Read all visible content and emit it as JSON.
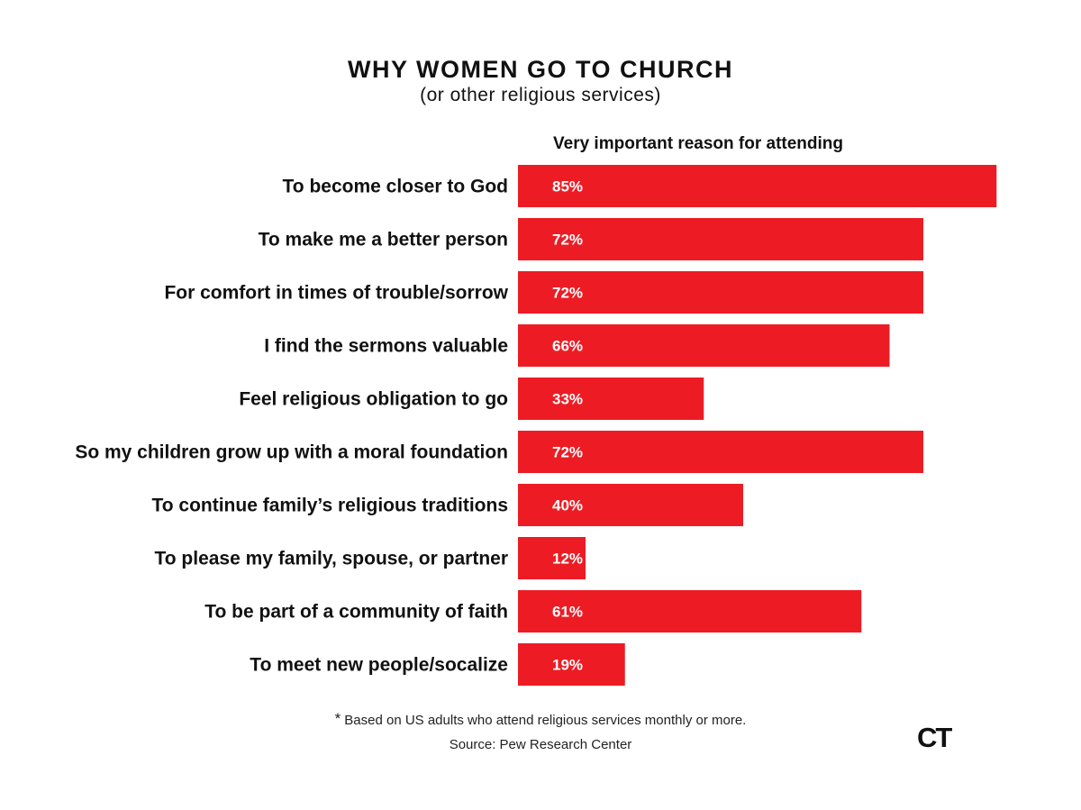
{
  "title": "WHY WOMEN GO TO CHURCH",
  "subtitle": "(or other religious services)",
  "column_header": "Very important reason for attending",
  "footnote": {
    "marker": "*",
    "text": "Based on US adults who attend religious services monthly or more."
  },
  "source": "Source: Pew Research Center",
  "logo_text": "CT",
  "colors": {
    "bar": "#ed1c24",
    "text": "#111111",
    "value_text": "#ffffff"
  },
  "chart_data": {
    "type": "bar",
    "orientation": "horizontal",
    "title": "WHY WOMEN GO TO CHURCH",
    "subtitle": "(or other religious services)",
    "series": [
      {
        "name": "Very important reason for attending",
        "values": [
          85,
          72,
          72,
          66,
          33,
          72,
          40,
          12,
          61,
          19
        ]
      }
    ],
    "categories": [
      "To become closer to God",
      "To make me a better person",
      "For comfort in times of trouble/sorrow",
      "I find the sermons valuable",
      "Feel religious obligation to go",
      "So my children grow up with a moral foundation",
      "To continue family’s religious traditions",
      "To please my family, spouse, or partner",
      "To be part of a community of faith",
      "To meet new people/socalize"
    ],
    "value_labels": [
      "85%",
      "72%",
      "72%",
      "66%",
      "33%",
      "72%",
      "40%",
      "12%",
      "61%",
      "19%"
    ],
    "unit": "%",
    "xlim": [
      0,
      100
    ],
    "grid": false,
    "legend": "none"
  }
}
